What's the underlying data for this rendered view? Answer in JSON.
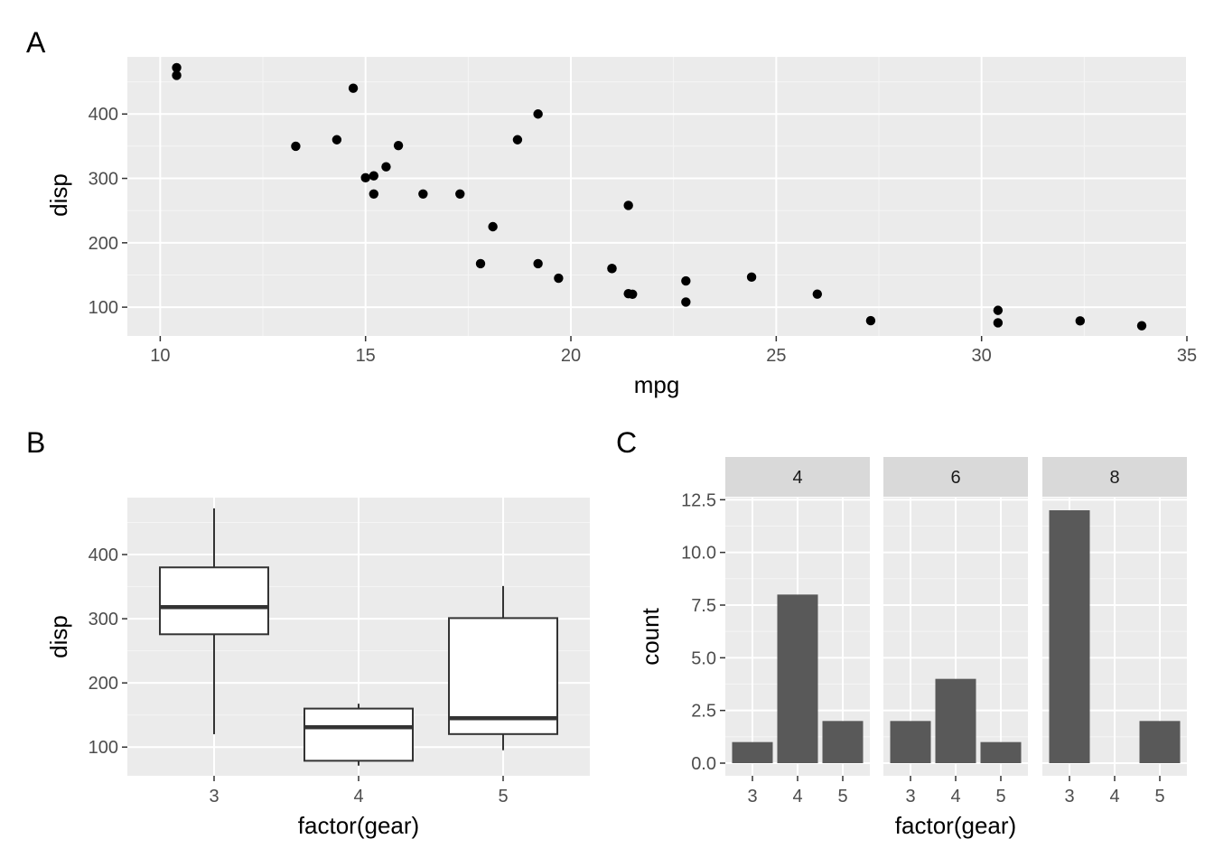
{
  "colors": {
    "panel_bg": "#ebebeb",
    "grid_major": "#ffffff",
    "grid_minor": "#f5f5f5",
    "tick_text": "#4d4d4d",
    "axis_tick": "#333333",
    "point": "#000000",
    "box_line": "#333333",
    "box_fill": "#ffffff",
    "bar_fill": "#595959",
    "strip_bg": "#d9d9d9"
  },
  "chart_data": [
    {
      "tag": "A",
      "type": "scatter",
      "title": "",
      "xlabel": "mpg",
      "ylabel": "disp",
      "xlim": [
        9.2,
        35
      ],
      "ylim": [
        55.3,
        488.7
      ],
      "x_ticks": [
        10,
        15,
        20,
        25,
        30,
        35
      ],
      "x_tick_labels": [
        "10",
        "15",
        "20",
        "25",
        "30",
        "35"
      ],
      "y_ticks": [
        100,
        200,
        300,
        400
      ],
      "y_tick_labels": [
        "100",
        "200",
        "300",
        "400"
      ],
      "grid": true,
      "points": [
        [
          21.0,
          160
        ],
        [
          21.0,
          160
        ],
        [
          22.8,
          108
        ],
        [
          21.4,
          258
        ],
        [
          18.7,
          360
        ],
        [
          18.1,
          225
        ],
        [
          14.3,
          360
        ],
        [
          24.4,
          146.7
        ],
        [
          22.8,
          140.8
        ],
        [
          19.2,
          167.6
        ],
        [
          17.8,
          167.6
        ],
        [
          16.4,
          275.8
        ],
        [
          17.3,
          275.8
        ],
        [
          15.2,
          275.8
        ],
        [
          10.4,
          472
        ],
        [
          10.4,
          460
        ],
        [
          14.7,
          440
        ],
        [
          32.4,
          78.7
        ],
        [
          30.4,
          75.7
        ],
        [
          33.9,
          71.1
        ],
        [
          21.5,
          120.1
        ],
        [
          15.5,
          318
        ],
        [
          15.2,
          304
        ],
        [
          13.3,
          350
        ],
        [
          19.2,
          400
        ],
        [
          27.3,
          79
        ],
        [
          26.0,
          120.3
        ],
        [
          30.4,
          95.1
        ],
        [
          15.8,
          351
        ],
        [
          19.7,
          145
        ],
        [
          15.0,
          301
        ],
        [
          21.4,
          121
        ]
      ]
    },
    {
      "tag": "B",
      "type": "box",
      "title": "",
      "xlabel": "factor(gear)",
      "ylabel": "disp",
      "ylim": [
        55.3,
        488.7
      ],
      "categories": [
        "3",
        "4",
        "5"
      ],
      "y_ticks": [
        100,
        200,
        300,
        400
      ],
      "y_tick_labels": [
        "100",
        "200",
        "300",
        "400"
      ],
      "grid": true,
      "boxes": [
        {
          "category": "3",
          "min": 120.1,
          "q1": 275.8,
          "median": 318,
          "q3": 380,
          "max": 472
        },
        {
          "category": "4",
          "min": 71.1,
          "q1": 78.7,
          "median": 130.9,
          "q3": 160,
          "max": 167.6
        },
        {
          "category": "5",
          "min": 95.1,
          "q1": 120.3,
          "median": 145,
          "q3": 301,
          "max": 351
        }
      ]
    },
    {
      "tag": "C",
      "type": "bar",
      "title": "",
      "xlabel": "factor(gear)",
      "ylabel": "count",
      "ylim": [
        -0.6,
        12.6
      ],
      "categories": [
        "3",
        "4",
        "5"
      ],
      "y_ticks": [
        0,
        2.5,
        5,
        7.5,
        10,
        12.5
      ],
      "y_tick_labels": [
        "0.0",
        "2.5",
        "5.0",
        "7.5",
        "10.0",
        "12.5"
      ],
      "grid": true,
      "facets": [
        {
          "label": "4",
          "values": [
            1,
            8,
            2
          ]
        },
        {
          "label": "6",
          "values": [
            2,
            4,
            1
          ]
        },
        {
          "label": "8",
          "values": [
            12,
            0,
            2
          ]
        }
      ]
    }
  ]
}
